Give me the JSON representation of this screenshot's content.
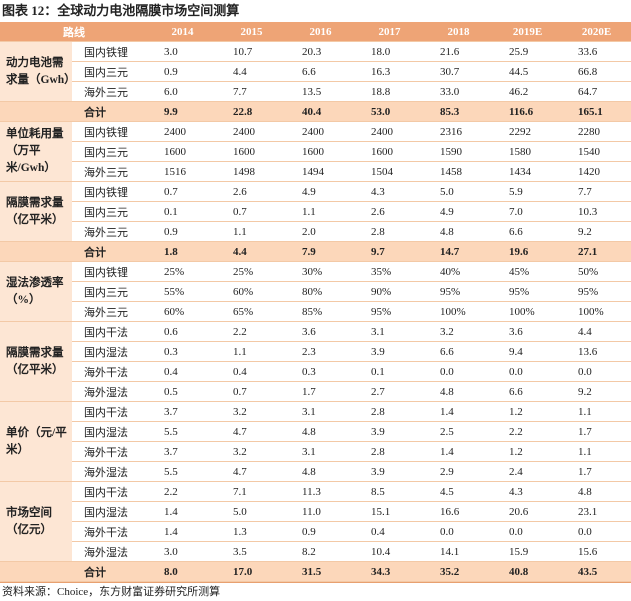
{
  "header": {
    "title": "图表 12：全球动力电池隔膜市场空间测算"
  },
  "table": {
    "columns": [
      "路线",
      "2014",
      "2015",
      "2016",
      "2017",
      "2018",
      "2019E",
      "2020E"
    ],
    "groups": [
      {
        "label": "动力电池需求量（Gwh）",
        "rows": [
          {
            "name": "国内铁锂",
            "values": [
              "3.0",
              "10.7",
              "20.3",
              "18.0",
              "21.6",
              "25.9",
              "33.6"
            ]
          },
          {
            "name": "国内三元",
            "values": [
              "0.9",
              "4.4",
              "6.6",
              "16.3",
              "30.7",
              "44.5",
              "66.8"
            ]
          },
          {
            "name": "海外三元",
            "values": [
              "6.0",
              "7.7",
              "13.5",
              "18.8",
              "33.0",
              "46.2",
              "64.7"
            ]
          }
        ],
        "total": {
          "name": "合计",
          "values": [
            "9.9",
            "22.8",
            "40.4",
            "53.0",
            "85.3",
            "116.6",
            "165.1"
          ]
        }
      },
      {
        "label": "单位耗用量（万平米/Gwh）",
        "rows": [
          {
            "name": "国内铁锂",
            "values": [
              "2400",
              "2400",
              "2400",
              "2400",
              "2316",
              "2292",
              "2280"
            ]
          },
          {
            "name": "国内三元",
            "values": [
              "1600",
              "1600",
              "1600",
              "1600",
              "1590",
              "1580",
              "1540"
            ]
          },
          {
            "name": "海外三元",
            "values": [
              "1516",
              "1498",
              "1494",
              "1504",
              "1458",
              "1434",
              "1420"
            ]
          }
        ]
      },
      {
        "label": "隔膜需求量（亿平米）",
        "rows": [
          {
            "name": "国内铁锂",
            "values": [
              "0.7",
              "2.6",
              "4.9",
              "4.3",
              "5.0",
              "5.9",
              "7.7"
            ]
          },
          {
            "name": "国内三元",
            "values": [
              "0.1",
              "0.7",
              "1.1",
              "2.6",
              "4.9",
              "7.0",
              "10.3"
            ]
          },
          {
            "name": "海外三元",
            "values": [
              "0.9",
              "1.1",
              "2.0",
              "2.8",
              "4.8",
              "6.6",
              "9.2"
            ]
          }
        ],
        "total": {
          "name": "合计",
          "values": [
            "1.8",
            "4.4",
            "7.9",
            "9.7",
            "14.7",
            "19.6",
            "27.1"
          ]
        }
      },
      {
        "label": "湿法渗透率（%）",
        "rows": [
          {
            "name": "国内铁锂",
            "values": [
              "25%",
              "25%",
              "30%",
              "35%",
              "40%",
              "45%",
              "50%"
            ]
          },
          {
            "name": "国内三元",
            "values": [
              "55%",
              "60%",
              "80%",
              "90%",
              "95%",
              "95%",
              "95%"
            ]
          },
          {
            "name": "海外三元",
            "values": [
              "60%",
              "65%",
              "85%",
              "95%",
              "100%",
              "100%",
              "100%"
            ]
          }
        ]
      },
      {
        "label": "隔膜需求量（亿平米）",
        "rows": [
          {
            "name": "国内干法",
            "values": [
              "0.6",
              "2.2",
              "3.6",
              "3.1",
              "3.2",
              "3.6",
              "4.4"
            ]
          },
          {
            "name": "国内湿法",
            "values": [
              "0.3",
              "1.1",
              "2.3",
              "3.9",
              "6.6",
              "9.4",
              "13.6"
            ]
          },
          {
            "name": "海外干法",
            "values": [
              "0.4",
              "0.4",
              "0.3",
              "0.1",
              "0.0",
              "0.0",
              "0.0"
            ]
          },
          {
            "name": "海外湿法",
            "values": [
              "0.5",
              "0.7",
              "1.7",
              "2.7",
              "4.8",
              "6.6",
              "9.2"
            ]
          }
        ]
      },
      {
        "label": "单价（元/平米）",
        "rows": [
          {
            "name": "国内干法",
            "values": [
              "3.7",
              "3.2",
              "3.1",
              "2.8",
              "1.4",
              "1.2",
              "1.1"
            ]
          },
          {
            "name": "国内湿法",
            "values": [
              "5.5",
              "4.7",
              "4.8",
              "3.9",
              "2.5",
              "2.2",
              "1.7"
            ]
          },
          {
            "name": "海外干法",
            "values": [
              "3.7",
              "3.2",
              "3.1",
              "2.8",
              "1.4",
              "1.2",
              "1.1"
            ]
          },
          {
            "name": "海外湿法",
            "values": [
              "5.5",
              "4.7",
              "4.8",
              "3.9",
              "2.9",
              "2.4",
              "1.7"
            ]
          }
        ]
      },
      {
        "label": "市场空间（亿元）",
        "rows": [
          {
            "name": "国内干法",
            "values": [
              "2.2",
              "7.1",
              "11.3",
              "8.5",
              "4.5",
              "4.3",
              "4.8"
            ]
          },
          {
            "name": "国内湿法",
            "values": [
              "1.4",
              "5.0",
              "11.0",
              "15.1",
              "16.6",
              "20.6",
              "23.1"
            ]
          },
          {
            "name": "海外干法",
            "values": [
              "1.4",
              "1.3",
              "0.9",
              "0.4",
              "0.0",
              "0.0",
              "0.0"
            ]
          },
          {
            "name": "海外湿法",
            "values": [
              "3.0",
              "3.5",
              "8.2",
              "10.4",
              "14.1",
              "15.9",
              "15.6"
            ]
          }
        ],
        "total": {
          "name": "合计",
          "values": [
            "8.0",
            "17.0",
            "31.5",
            "34.3",
            "35.2",
            "40.8",
            "43.5"
          ]
        }
      }
    ]
  },
  "footer": {
    "source": "资料来源：Choice，东方财富证券研究所测算"
  }
}
